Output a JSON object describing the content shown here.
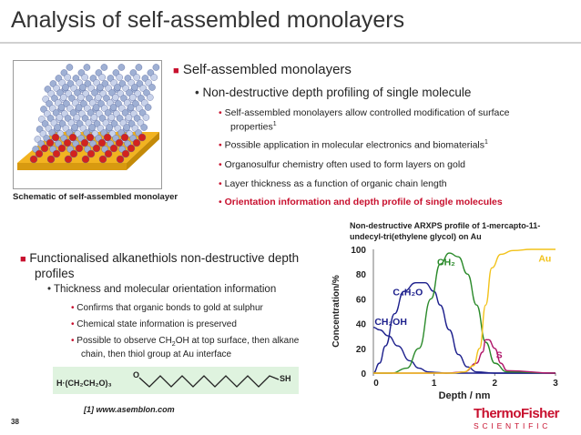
{
  "slide": {
    "title": "Analysis of self-assembled monolayers",
    "page_number": "38",
    "reference": "[1] www.asemblon.com"
  },
  "figure": {
    "caption": "Schematic of self-assembled monolayer"
  },
  "top_bullets": {
    "l1": "Self-assembled monolayers",
    "l2": "Non-destructive depth profiling of single molecule",
    "l3a": "Self-assembled monolayers allow controlled modification of surface",
    "l3a_cont": "properties",
    "l3a_sup": "1",
    "l3b": "Possible application in molecular electronics and biomaterials",
    "l3b_sup": "1",
    "l3c": "Organosulfur chemistry often used to form layers on gold",
    "l3d": "Layer thickness as a function of organic chain length",
    "l3e": "Orientation information and depth profile of single molecules"
  },
  "bottom_bullets": {
    "l1a": "Functionalised alkanethiols non-destructive depth",
    "l1b": "profiles",
    "l2": "Thickness and molecular orientation information",
    "l3a": "Confirms that organic bonds to gold at sulphur",
    "l3b": "Chemical state information is preserved",
    "l3c_pre": "Possible to observe CH",
    "l3c_sub": "2",
    "l3c_post": "OH at top surface, then alkane",
    "l3c_2": "chain, then thiol group at Au interface"
  },
  "chemical": {
    "left": "H·(CH₂CH₂O)₃",
    "o": "O",
    "right": "SH"
  },
  "logo": {
    "top": "ThermoFisher",
    "bottom": "SCIENTIFIC"
  },
  "colors": {
    "accent": "#c8102e",
    "title": "#333333",
    "navy": "#1c1f8c",
    "green": "#2a8a2a",
    "yellow": "#f2c21a",
    "magenta": "#b0186a",
    "chem_bg": "#dff3df"
  },
  "chart_data": {
    "type": "line",
    "title": "Non-destructive ARXPS profile of 1-mercapto-11-undecyl-tri(ethylene glycol) on Au",
    "xlabel": "Depth / nm",
    "ylabel": "Concentration/%",
    "xlim": [
      0,
      3
    ],
    "ylim": [
      0,
      100
    ],
    "xticks": [
      "0",
      "1",
      "2",
      "3"
    ],
    "yticks": [
      "0",
      "20",
      "40",
      "60",
      "80",
      "100"
    ],
    "series": [
      {
        "name": "CH₂OH",
        "color": "#1c1f8c",
        "x": [
          0,
          0.1,
          0.25,
          0.4,
          0.6,
          0.75,
          0.9,
          1.05,
          1.2,
          1.5,
          3
        ],
        "y": [
          37,
          35,
          30,
          22,
          10,
          4,
          1,
          0.5,
          0,
          0,
          0
        ]
      },
      {
        "name": "C₄H₂O",
        "color": "#1c1f8c",
        "x": [
          0,
          0.1,
          0.2,
          0.35,
          0.5,
          0.7,
          0.85,
          1.0,
          1.1,
          1.25,
          1.4,
          1.55,
          1.7,
          2.0,
          3
        ],
        "y": [
          0,
          8,
          22,
          48,
          66,
          73,
          73,
          66,
          55,
          35,
          15,
          5,
          1,
          0,
          0
        ]
      },
      {
        "name": "CH₂",
        "color": "#2a8a2a",
        "x": [
          0,
          0.3,
          0.55,
          0.75,
          0.95,
          1.1,
          1.25,
          1.4,
          1.55,
          1.7,
          1.85,
          2.0,
          2.2,
          3
        ],
        "y": [
          0,
          0,
          4,
          20,
          60,
          88,
          97,
          94,
          80,
          55,
          25,
          8,
          1,
          0
        ]
      },
      {
        "name": "S",
        "color": "#b0186a",
        "x": [
          0,
          1.2,
          1.5,
          1.7,
          1.8,
          1.85,
          1.9,
          2.0,
          2.1,
          2.2,
          3
        ],
        "y": [
          0,
          0,
          1,
          8,
          17,
          27,
          27,
          20,
          8,
          2,
          0
        ]
      },
      {
        "name": "Au",
        "color": "#f2c21a",
        "x": [
          0,
          1.3,
          1.5,
          1.65,
          1.75,
          1.85,
          1.95,
          2.1,
          2.3,
          2.6,
          3.0
        ],
        "y": [
          0,
          0,
          1,
          6,
          20,
          55,
          85,
          96,
          99,
          100,
          100
        ]
      }
    ]
  }
}
